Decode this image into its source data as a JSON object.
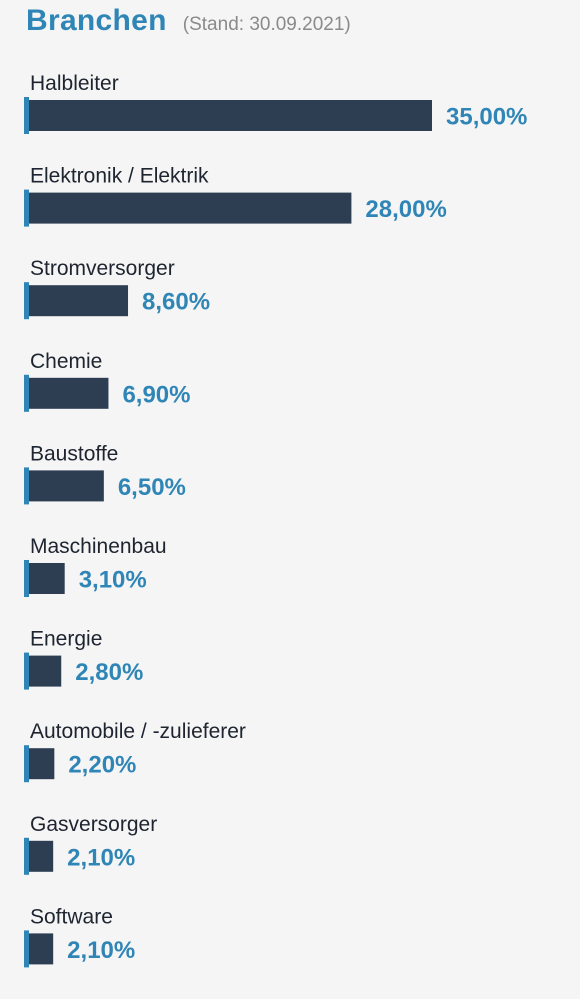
{
  "header": {
    "title": "Branchen",
    "subtitle": "(Stand: 30.09.2021)"
  },
  "colors": {
    "title": "#2f86b6",
    "bar": "#2d3e52",
    "accent": "#2f86b6",
    "value": "#2f86b6",
    "label": "#1e2530",
    "background": "#f5f5f5"
  },
  "chart_data": {
    "type": "bar",
    "orientation": "horizontal",
    "title": "Branchen",
    "subtitle": "(Stand: 30.09.2021)",
    "xlabel": "",
    "ylabel": "",
    "xlim": [
      0,
      35
    ],
    "grid": false,
    "legend": "none",
    "categories": [
      "Halbleiter",
      "Elektronik / Elektrik",
      "Stromversorger",
      "Chemie",
      "Baustoffe",
      "Maschinenbau",
      "Energie",
      "Automobile / -zulieferer",
      "Gasversorger",
      "Software"
    ],
    "values": [
      35.0,
      28.0,
      8.6,
      6.9,
      6.5,
      3.1,
      2.8,
      2.2,
      2.1,
      2.1
    ],
    "value_labels": [
      "35,00%",
      "28,00%",
      "8,60%",
      "6,90%",
      "6,50%",
      "3,10%",
      "2,80%",
      "2,20%",
      "2,10%",
      "2,10%"
    ]
  }
}
